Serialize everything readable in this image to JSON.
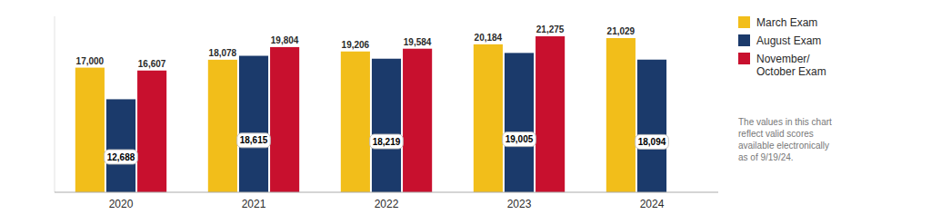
{
  "chart_data": {
    "type": "bar",
    "categories": [
      "2020",
      "2021",
      "2022",
      "2023",
      "2024"
    ],
    "series": [
      {
        "name": "March Exam",
        "color": "#F2BE1A",
        "values": [
          17000,
          18078,
          19206,
          20184,
          21029
        ],
        "value_labels": [
          "17,000",
          "18,078",
          "19,206",
          "20,184",
          "21,029"
        ]
      },
      {
        "name": "August Exam",
        "color": "#1B3A6B",
        "values": [
          12688,
          18615,
          18219,
          19005,
          18094
        ],
        "value_labels": [
          "12,688",
          "18,615",
          "18,219",
          "19,005",
          "18,094"
        ]
      },
      {
        "name": "November/\nOctober Exam",
        "color": "#C8102E",
        "values": [
          16607,
          19804,
          19584,
          21275,
          null
        ],
        "value_labels": [
          "16,607",
          "19,804",
          "19,584",
          "21,275",
          null
        ]
      }
    ],
    "annotations": [
      "The values in this chart\nreflect valid scores\navailable electronically\nas of 9/19/24."
    ],
    "ylim": [
      0,
      24000
    ],
    "data_labels": true,
    "tick_labels": "x",
    "grid": false,
    "legend": "upper right"
  }
}
